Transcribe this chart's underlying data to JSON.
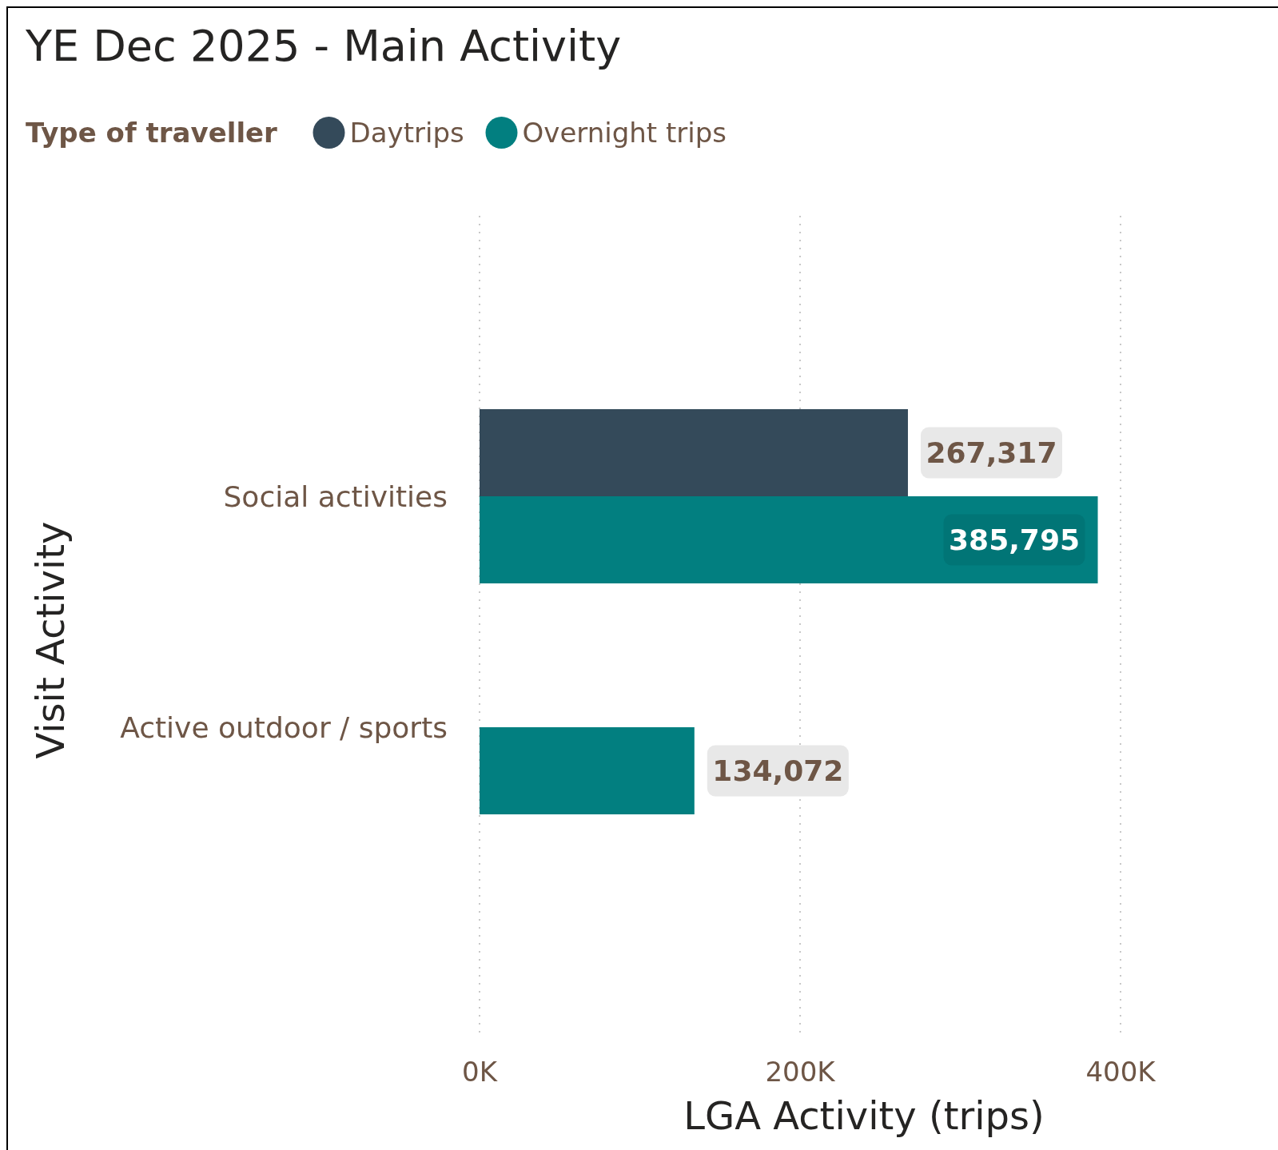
{
  "chart_data": {
    "type": "bar",
    "orientation": "horizontal",
    "title": "YE Dec 2025 - Main Activity",
    "xlabel": "LGA Activity (trips)",
    "ylabel": "Visit Activity",
    "legend_title": "Type of traveller",
    "legend": "top left",
    "categories": [
      "Social activities",
      "Active outdoor / sports"
    ],
    "series": [
      {
        "name": "Daytrips",
        "color": "#344a5a",
        "values": [
          267317,
          null
        ],
        "value_labels": [
          "267,317",
          null
        ]
      },
      {
        "name": "Overnight trips",
        "color": "#027f80",
        "values": [
          385795,
          134072
        ],
        "value_labels": [
          "385,795",
          "134,072"
        ]
      }
    ],
    "xlim": [
      0,
      400000
    ],
    "xticks": [
      {
        "value": 0,
        "label": "0K"
      },
      {
        "value": 200000,
        "label": "200K"
      },
      {
        "value": 400000,
        "label": "400K"
      }
    ],
    "grid": "x"
  }
}
